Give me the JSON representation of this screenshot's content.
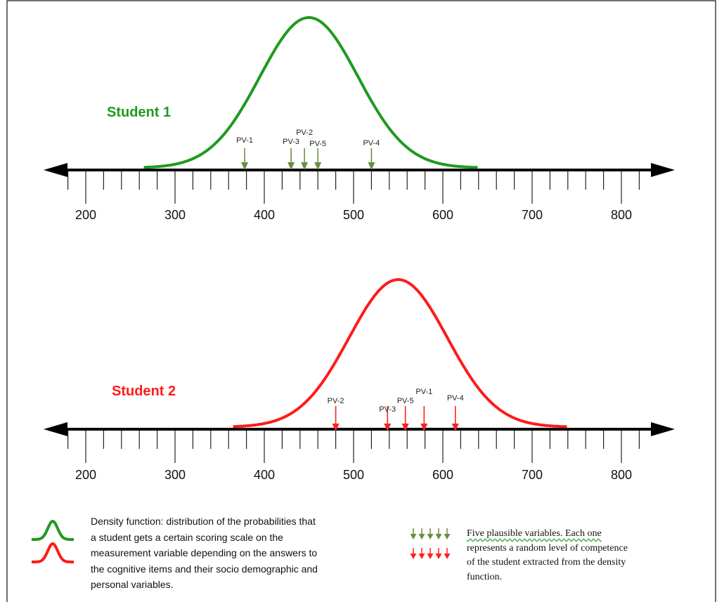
{
  "colors": {
    "student1": "#1e9a1e",
    "student1_arrow": "#6b8e3f",
    "student2": "#ff1a1a",
    "student2_arrow": "#ff2020",
    "axis": "#000000"
  },
  "scale": {
    "tick_labels": [
      "200",
      "300",
      "400",
      "500",
      "600",
      "700",
      "800"
    ]
  },
  "panels": [
    {
      "label": "Student 1",
      "curve_mean": 450,
      "curve_sd": 55,
      "curve_range": [
        265,
        640
      ],
      "plausible_values": [
        {
          "label": "PV-1",
          "value": 378
        },
        {
          "label": "PV-3",
          "value": 430
        },
        {
          "label": "PV-2",
          "value": 445
        },
        {
          "label": "PV-5",
          "value": 460
        },
        {
          "label": "PV-4",
          "value": 520
        }
      ]
    },
    {
      "label": "Student 2",
      "curve_mean": 550,
      "curve_sd": 55,
      "curve_range": [
        365,
        740
      ],
      "plausible_values": [
        {
          "label": "PV-2",
          "value": 480
        },
        {
          "label": "PV-3",
          "value": 538
        },
        {
          "label": "PV-5",
          "value": 558
        },
        {
          "label": "PV-1",
          "value": 579
        },
        {
          "label": "PV-4",
          "value": 614
        }
      ]
    }
  ],
  "legend": {
    "density_lines": [
      "Density function:  distribution of the probabilities that",
      "a student gets a certain scoring scale on the",
      "measurement variable depending on the answers to",
      "the cognitive items and their socio demographic and",
      "personal variables."
    ],
    "pv_lines": [
      "Five plausible variables. Each one",
      "represents a random level of competence",
      "of the student extracted from the density",
      "function."
    ]
  }
}
